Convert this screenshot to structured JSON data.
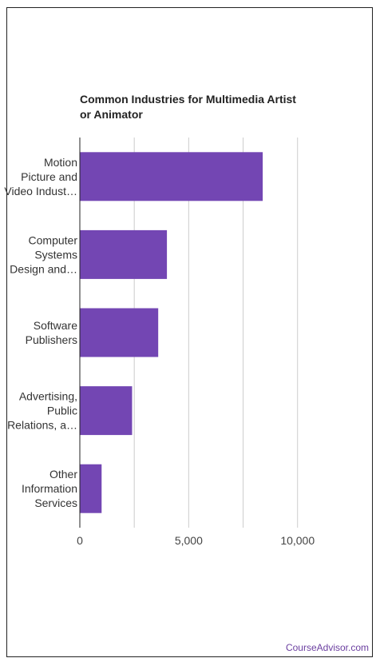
{
  "chart_data": {
    "type": "bar",
    "orientation": "horizontal",
    "title": "Common Industries for Multimedia Artist or Animator",
    "categories": [
      [
        "Motion",
        "Picture and",
        "Video Indust…"
      ],
      [
        "Computer",
        "Systems",
        "Design and…"
      ],
      [
        "Software",
        "Publishers"
      ],
      [
        "Advertising,",
        "Public",
        "Relations, a…"
      ],
      [
        "Other",
        "Information",
        "Services"
      ]
    ],
    "values": [
      8400,
      4000,
      3600,
      2400,
      1000
    ],
    "xlim": [
      0,
      11000
    ],
    "xticks": [
      0,
      5000,
      10000
    ],
    "xtick_labels": [
      "0",
      "5,000",
      "10,000"
    ],
    "grid": true,
    "bar_color": "#7346b3"
  },
  "brand": "CourseAdvisor.com",
  "colors": {
    "brand": "#6b3fa0",
    "grid": "#cccccc",
    "axis": "#222222"
  }
}
